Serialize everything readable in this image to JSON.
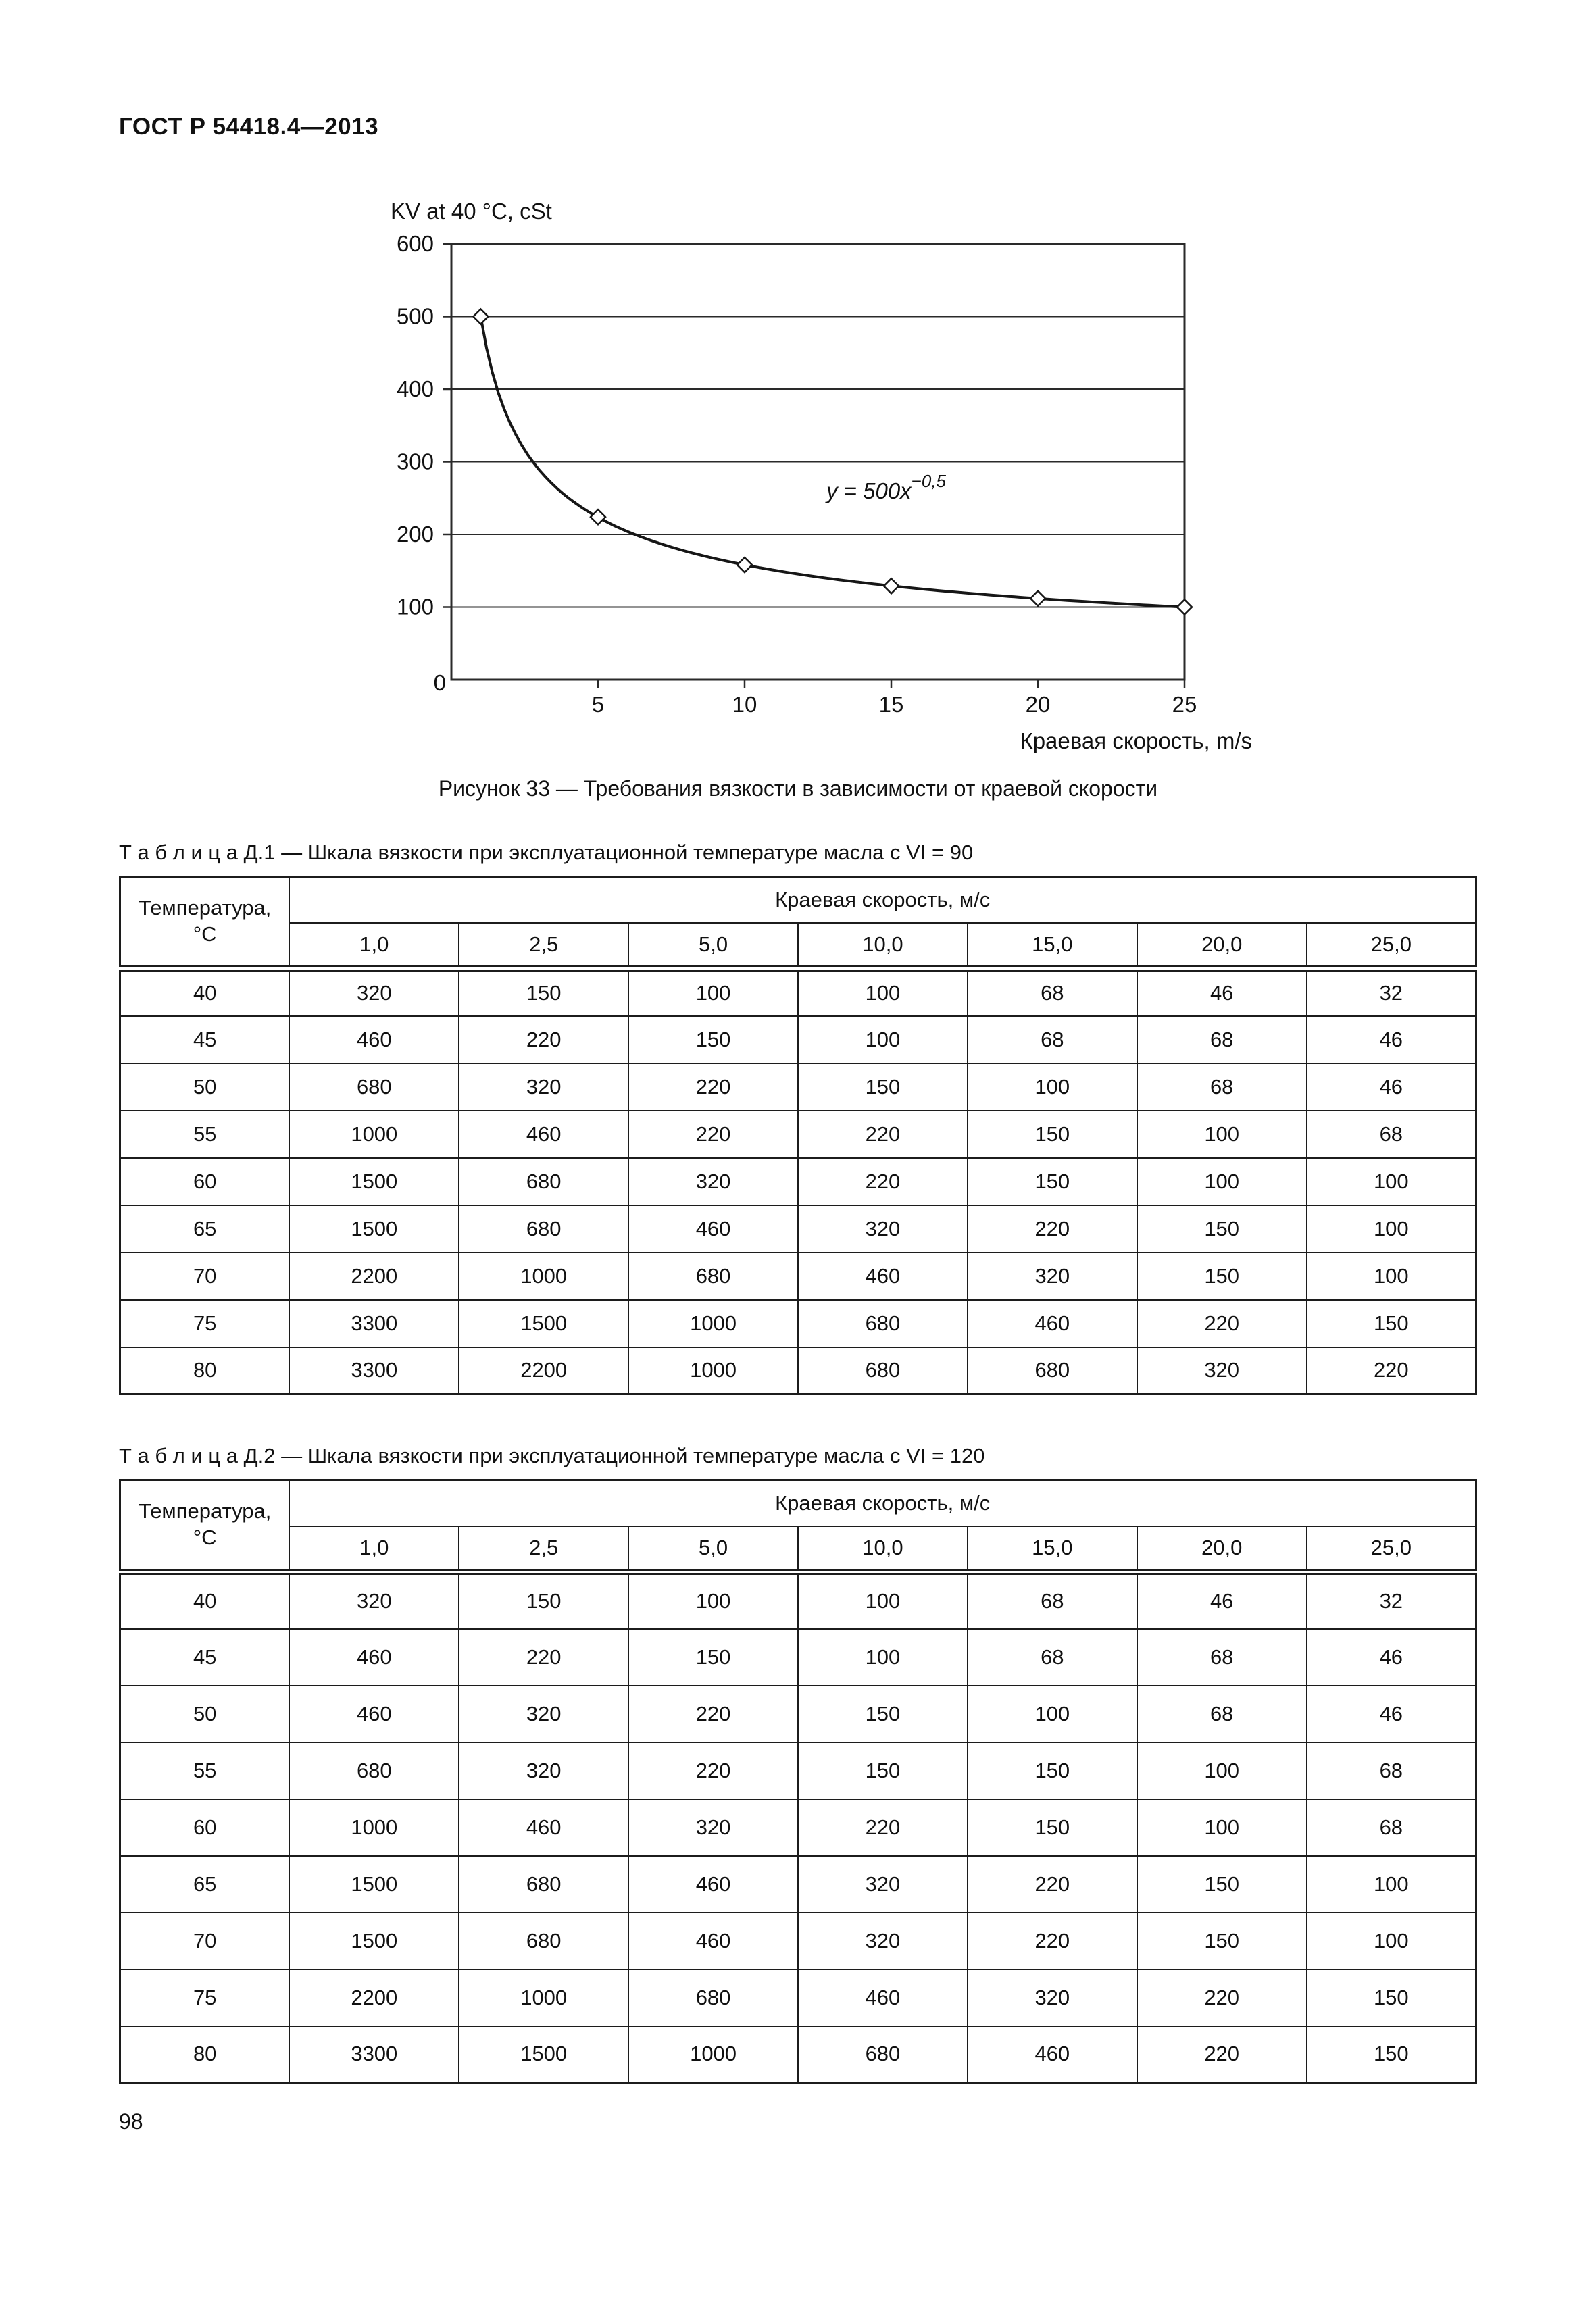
{
  "page": {
    "header": "ГОСТ Р 54418.4—2013",
    "page_number": "98"
  },
  "figure": {
    "caption": "Рисунок 33 — Требования вязкости в зависимости от краевой скорости"
  },
  "chart_data": {
    "type": "line",
    "title": "",
    "ylabel": "KV at 40 °C, cSt",
    "xlabel": "Краевая скорость, m/s",
    "x": [
      1,
      5,
      10,
      15,
      20,
      25
    ],
    "y": [
      500,
      224,
      158,
      129,
      112,
      100
    ],
    "xlim": [
      0,
      25
    ],
    "ylim": [
      0,
      600
    ],
    "x_ticks": [
      5,
      10,
      15,
      20,
      25
    ],
    "y_ticks": [
      100,
      200,
      300,
      400,
      500,
      600
    ],
    "origin_label": "0",
    "annotation_base": "y = 500x",
    "annotation_exp": "−0,5",
    "grid": "horizontal",
    "curve_formula": "y = 500 * x^(-0.5)",
    "marker_style": "open-diamond",
    "legend_position": "none"
  },
  "tables": [
    {
      "title": "Т а б л и ц а  Д.1 — Шкала вязкости при эксплуатационной температуре масла с VI = 90",
      "corner_header": "Температура,\n°С",
      "group_header": "Краевая скорость, м/с",
      "columns": [
        "1,0",
        "2,5",
        "5,0",
        "10,0",
        "15,0",
        "20,0",
        "25,0"
      ],
      "rows": [
        {
          "temp": "40",
          "values": [
            "320",
            "150",
            "100",
            "100",
            "68",
            "46",
            "32"
          ]
        },
        {
          "temp": "45",
          "values": [
            "460",
            "220",
            "150",
            "100",
            "68",
            "68",
            "46"
          ]
        },
        {
          "temp": "50",
          "values": [
            "680",
            "320",
            "220",
            "150",
            "100",
            "68",
            "46"
          ]
        },
        {
          "temp": "55",
          "values": [
            "1000",
            "460",
            "220",
            "220",
            "150",
            "100",
            "68"
          ]
        },
        {
          "temp": "60",
          "values": [
            "1500",
            "680",
            "320",
            "220",
            "150",
            "100",
            "100"
          ]
        },
        {
          "temp": "65",
          "values": [
            "1500",
            "680",
            "460",
            "320",
            "220",
            "150",
            "100"
          ]
        },
        {
          "temp": "70",
          "values": [
            "2200",
            "1000",
            "680",
            "460",
            "320",
            "150",
            "100"
          ]
        },
        {
          "temp": "75",
          "values": [
            "3300",
            "1500",
            "1000",
            "680",
            "460",
            "220",
            "150"
          ]
        },
        {
          "temp": "80",
          "values": [
            "3300",
            "2200",
            "1000",
            "680",
            "680",
            "320",
            "220"
          ]
        }
      ]
    },
    {
      "title": "Т а б л и ц а  Д.2 — Шкала вязкости при эксплуатационной температуре масла с VI = 120",
      "corner_header": "Температура,\n°С",
      "group_header": "Краевая скорость, м/с",
      "columns": [
        "1,0",
        "2,5",
        "5,0",
        "10,0",
        "15,0",
        "20,0",
        "25,0"
      ],
      "rows": [
        {
          "temp": "40",
          "values": [
            "320",
            "150",
            "100",
            "100",
            "68",
            "46",
            "32"
          ]
        },
        {
          "temp": "45",
          "values": [
            "460",
            "220",
            "150",
            "100",
            "68",
            "68",
            "46"
          ]
        },
        {
          "temp": "50",
          "values": [
            "460",
            "320",
            "220",
            "150",
            "100",
            "68",
            "46"
          ]
        },
        {
          "temp": "55",
          "values": [
            "680",
            "320",
            "220",
            "150",
            "150",
            "100",
            "68"
          ]
        },
        {
          "temp": "60",
          "values": [
            "1000",
            "460",
            "320",
            "220",
            "150",
            "100",
            "68"
          ]
        },
        {
          "temp": "65",
          "values": [
            "1500",
            "680",
            "460",
            "320",
            "220",
            "150",
            "100"
          ]
        },
        {
          "temp": "70",
          "values": [
            "1500",
            "680",
            "460",
            "320",
            "220",
            "150",
            "100"
          ]
        },
        {
          "temp": "75",
          "values": [
            "2200",
            "1000",
            "680",
            "460",
            "320",
            "220",
            "150"
          ]
        },
        {
          "temp": "80",
          "values": [
            "3300",
            "1500",
            "1000",
            "680",
            "460",
            "220",
            "150"
          ]
        }
      ]
    }
  ]
}
